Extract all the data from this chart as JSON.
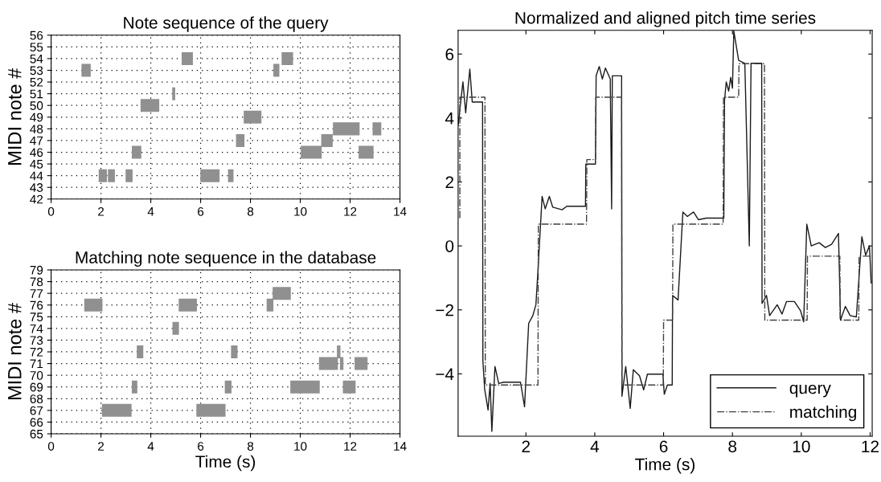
{
  "chart_data": [
    {
      "type": "bar",
      "orientation": "horizontal",
      "title": "Note sequence of the query",
      "ylabel": "MIDI note #",
      "xlim": [
        0,
        14
      ],
      "xticks": [
        0,
        2,
        4,
        6,
        8,
        10,
        12,
        14
      ],
      "grid": true,
      "categories": [
        "56",
        "55",
        "54",
        "53",
        "52",
        "51",
        "50",
        "49",
        "48",
        "47",
        "46",
        "45",
        "44",
        "43",
        "42"
      ],
      "series": [
        {
          "color": "#909090",
          "values": [
            null,
            null,
            0.45,
            0.37,
            null,
            0.12,
            0.75,
            0.71,
            1.07,
            0.34,
            0.38,
            null,
            0.33,
            null,
            null
          ],
          "base": [
            null,
            null,
            5.24,
            1.22,
            null,
            4.86,
            3.59,
            7.73,
            11.31,
            7.42,
            3.24,
            null,
            1.91,
            null,
            null
          ]
        },
        {
          "color": "#909090",
          "values": [
            null,
            null,
            0.46,
            0.24,
            null,
            null,
            null,
            null,
            0.35,
            0.46,
            0.84,
            null,
            0.28,
            null,
            null
          ],
          "base": [
            null,
            null,
            9.25,
            8.92,
            null,
            null,
            null,
            null,
            12.9,
            10.84,
            10.02,
            null,
            2.28,
            null,
            null
          ]
        },
        {
          "color": "#909090",
          "values": [
            null,
            null,
            null,
            null,
            null,
            null,
            null,
            null,
            null,
            null,
            0.6,
            null,
            0.28,
            null,
            null
          ],
          "base": [
            null,
            null,
            null,
            null,
            null,
            null,
            null,
            null,
            null,
            null,
            12.34,
            null,
            2.99,
            null,
            null
          ]
        },
        {
          "color": "#909090",
          "values": [
            null,
            null,
            null,
            null,
            null,
            null,
            null,
            null,
            null,
            null,
            null,
            null,
            0.77,
            null,
            null
          ],
          "base": [
            null,
            null,
            null,
            null,
            null,
            null,
            null,
            null,
            null,
            null,
            null,
            null,
            5.99,
            null,
            null
          ]
        },
        {
          "color": "#909090",
          "values": [
            null,
            null,
            null,
            null,
            null,
            null,
            null,
            null,
            null,
            null,
            null,
            null,
            0.22,
            null,
            null
          ],
          "base": [
            null,
            null,
            null,
            null,
            null,
            null,
            null,
            null,
            null,
            null,
            null,
            null,
            7.1,
            null,
            null
          ]
        }
      ]
    },
    {
      "type": "bar",
      "orientation": "horizontal",
      "title": "Matching note sequence in the database",
      "xlabel": "Time (s)",
      "ylabel": "MIDI note #",
      "xlim": [
        0,
        14
      ],
      "xticks": [
        0,
        2,
        4,
        6,
        8,
        10,
        12,
        14
      ],
      "grid": true,
      "categories": [
        "79",
        "78",
        "77",
        "76",
        "75",
        "74",
        "73",
        "72",
        "71",
        "70",
        "69",
        "68",
        "67",
        "66",
        "65"
      ],
      "series": [
        {
          "color": "#909090",
          "values": [
            null,
            null,
            0.73,
            0.73,
            null,
            0.26,
            null,
            0.26,
            0.76,
            null,
            0.22,
            null,
            1.19,
            null,
            null
          ],
          "base": [
            null,
            null,
            8.89,
            1.33,
            null,
            4.87,
            null,
            3.44,
            10.75,
            null,
            3.24,
            null,
            2.04,
            null,
            null
          ]
        },
        {
          "color": "#909090",
          "values": [
            null,
            null,
            null,
            0.73,
            null,
            null,
            null,
            0.26,
            0.14,
            null,
            0.27,
            null,
            1.17,
            null,
            null
          ],
          "base": [
            null,
            null,
            null,
            5.12,
            null,
            null,
            null,
            7.22,
            11.59,
            null,
            6.97,
            null,
            5.83,
            null,
            null
          ]
        },
        {
          "color": "#909090",
          "values": [
            null,
            null,
            null,
            0.27,
            null,
            null,
            null,
            0.14,
            0.52,
            null,
            1.18,
            null,
            null,
            null,
            null
          ],
          "base": [
            null,
            null,
            null,
            8.65,
            null,
            null,
            null,
            11.47,
            12.18,
            null,
            9.6,
            null,
            null,
            null,
            null
          ]
        },
        {
          "color": "#909090",
          "values": [
            null,
            null,
            null,
            null,
            null,
            null,
            null,
            null,
            null,
            null,
            0.51,
            null,
            null,
            null,
            null
          ],
          "base": [
            null,
            null,
            null,
            null,
            null,
            null,
            null,
            null,
            null,
            null,
            11.71,
            null,
            null,
            null,
            null
          ]
        }
      ]
    },
    {
      "type": "line",
      "title": "Normalized and aligned pitch time series",
      "xlabel": "Time (s)",
      "xlim": [
        0.03,
        12.06
      ],
      "xticks": [
        2,
        4,
        6,
        8,
        10,
        12
      ],
      "ylim": [
        -5.95,
        6.74
      ],
      "yticks": [
        {
          "value": -4,
          "label": "−4"
        },
        {
          "value": -2,
          "label": "−2"
        },
        0,
        2,
        4,
        6
      ],
      "grid": false,
      "legend": "bottom right",
      "series": [
        {
          "name": "query",
          "color": "#1a1a1a",
          "line_style": "solid",
          "x": [
            0.03,
            0.17,
            0.25,
            0.37,
            0.43,
            0.44,
            0.74,
            0.75,
            0.8,
            0.9,
            0.96,
            1.01,
            1.1,
            1.21,
            1.35,
            1.84,
            1.88,
            1.96,
            2.08,
            2.2,
            2.29,
            2.35,
            2.47,
            2.56,
            2.68,
            2.78,
            3.05,
            3.19,
            3.73,
            3.74,
            4.02,
            4.04,
            4.13,
            4.22,
            4.31,
            4.45,
            4.49,
            4.51,
            4.78,
            4.79,
            4.9,
            5.03,
            5.12,
            5.3,
            5.42,
            5.53,
            5.98,
            6.02,
            6.11,
            6.25,
            6.26,
            6.42,
            6.56,
            6.69,
            6.87,
            7.01,
            7.24,
            7.75,
            7.77,
            7.82,
            7.89,
            7.95,
            8.0,
            8.04,
            8.18,
            8.36,
            8.49,
            8.54,
            8.85,
            8.86,
            8.99,
            9.08,
            9.3,
            9.44,
            9.57,
            9.8,
            9.98,
            10.07,
            10.16,
            10.29,
            10.52,
            10.7,
            10.88,
            11.08,
            11.14,
            11.28,
            11.42,
            11.6,
            11.69,
            11.76,
            11.87,
            11.98,
            12.03
          ],
          "values": [
            3.77,
            5.13,
            4.16,
            5.53,
            4.66,
            4.5,
            4.5,
            -3.6,
            -4.47,
            -5.13,
            -4.3,
            -5.8,
            -3.77,
            -4.3,
            -4.26,
            -4.26,
            -4.5,
            -5.03,
            -2.42,
            -2.18,
            -1.84,
            -0.77,
            1.55,
            1.16,
            1.55,
            1.21,
            1.13,
            1.24,
            1.24,
            2.56,
            2.56,
            5.32,
            5.61,
            5.22,
            5.56,
            5.22,
            1.16,
            5.32,
            5.32,
            -4.7,
            -3.77,
            -5.08,
            -3.87,
            -4.06,
            -4.5,
            -4.01,
            -4.01,
            -4.64,
            -4.35,
            -4.35,
            -1.55,
            -1.69,
            1.06,
            0.92,
            1.06,
            0.82,
            0.87,
            0.87,
            4.55,
            5.13,
            4.84,
            5.27,
            4.93,
            6.72,
            5.8,
            5.71,
            0.0,
            5.71,
            5.71,
            -1.8,
            -1.55,
            -2.18,
            -1.84,
            -2.13,
            -1.74,
            -1.74,
            -2.03,
            -2.37,
            0.68,
            0.0,
            0.1,
            -0.05,
            0.05,
            0.39,
            -2.32,
            -1.89,
            -2.18,
            -2.22,
            -0.77,
            0.29,
            -0.29,
            0.0,
            -1.16
          ]
        },
        {
          "name": "matching",
          "color": "#404040",
          "line_style": "dashdot",
          "x": [
            0.08,
            0.08,
            0.81,
            0.82,
            2.35,
            2.36,
            3.76,
            3.77,
            4.02,
            4.03,
            4.78,
            4.79,
            5.99,
            6.0,
            6.26,
            6.27,
            7.73,
            7.74,
            8.18,
            8.19,
            8.93,
            8.94,
            10.17,
            10.18,
            11.12,
            11.13,
            11.67,
            11.68,
            12.06
          ],
          "values": [
            0.87,
            4.65,
            4.65,
            -4.35,
            -4.35,
            0.68,
            0.68,
            2.7,
            2.7,
            4.65,
            4.65,
            -4.35,
            -4.35,
            -2.32,
            -2.32,
            0.68,
            0.68,
            4.65,
            4.65,
            5.7,
            5.7,
            -2.32,
            -2.32,
            -0.32,
            -0.32,
            -2.32,
            -2.32,
            -0.32,
            -0.32
          ]
        }
      ]
    }
  ]
}
